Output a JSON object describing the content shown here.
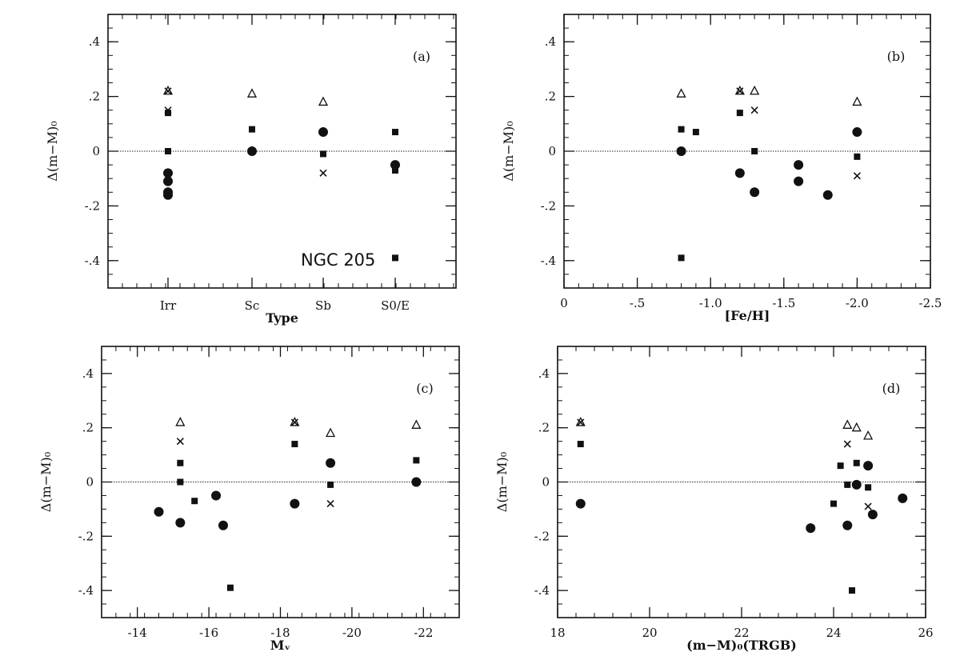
{
  "figure": {
    "annotation": "NGC 205"
  },
  "chart_data": [
    {
      "type": "scatter",
      "panel_label": "(a)",
      "xlabel": "Type",
      "ylabel": "Δ(m−M)₀",
      "x_scale": "categorical",
      "categories": [
        "Irr",
        "Sc",
        "Sb",
        "S0/E"
      ],
      "xlim": [
        0,
        5
      ],
      "ylim": [
        -0.5,
        0.5
      ],
      "y_ticks": [
        -0.4,
        -0.2,
        0,
        0.2,
        0.4
      ],
      "y_tick_labels": [
        "-.4",
        "-.2",
        "0",
        ".2",
        ".4"
      ],
      "reference_line": 0,
      "series": [
        {
          "marker": "triangle",
          "points": [
            [
              1,
              0.22
            ],
            [
              2,
              0.21
            ],
            [
              3,
              0.18
            ]
          ]
        },
        {
          "marker": "cross",
          "points": [
            [
              1,
              0.22
            ],
            [
              1,
              0.15
            ],
            [
              3,
              -0.08
            ]
          ]
        },
        {
          "marker": "square",
          "points": [
            [
              1,
              0.14
            ],
            [
              1,
              0.0
            ],
            [
              2,
              0.08
            ],
            [
              3,
              -0.01
            ],
            [
              4,
              0.07
            ],
            [
              4,
              -0.07
            ],
            [
              4,
              -0.39
            ]
          ]
        },
        {
          "marker": "circle",
          "points": [
            [
              1,
              -0.08
            ],
            [
              1,
              -0.11
            ],
            [
              1,
              -0.15
            ],
            [
              1,
              -0.16
            ],
            [
              2,
              0.0
            ],
            [
              3,
              0.07
            ],
            [
              4,
              -0.05
            ]
          ]
        }
      ]
    },
    {
      "type": "scatter",
      "panel_label": "(b)",
      "xlabel": "[Fe/H]",
      "ylabel": "Δ(m−M)₀",
      "xlim": [
        0,
        -2.5
      ],
      "ylim": [
        -0.5,
        0.5
      ],
      "x_ticks": [
        0,
        -0.5,
        -1.0,
        -1.5,
        -2.0,
        -2.5
      ],
      "x_tick_labels": [
        "0",
        "-.5",
        "-1.0",
        "-1.5",
        "-2.0",
        "-2.5"
      ],
      "y_ticks": [
        -0.4,
        -0.2,
        0,
        0.2,
        0.4
      ],
      "y_tick_labels": [
        "-.4",
        "-.2",
        "0",
        ".2",
        ".4"
      ],
      "reference_line": 0,
      "series": [
        {
          "marker": "triangle",
          "points": [
            [
              -0.8,
              0.21
            ],
            [
              -1.2,
              0.22
            ],
            [
              -1.3,
              0.22
            ],
            [
              -2.0,
              0.18
            ]
          ]
        },
        {
          "marker": "cross",
          "points": [
            [
              -1.2,
              0.22
            ],
            [
              -1.3,
              0.15
            ],
            [
              -2.0,
              -0.09
            ]
          ]
        },
        {
          "marker": "square",
          "points": [
            [
              -0.8,
              0.08
            ],
            [
              -0.9,
              0.07
            ],
            [
              -1.2,
              0.14
            ],
            [
              -1.3,
              0.0
            ],
            [
              -2.0,
              -0.02
            ],
            [
              -0.8,
              -0.39
            ]
          ]
        },
        {
          "marker": "circle",
          "points": [
            [
              -0.8,
              0.0
            ],
            [
              -1.2,
              -0.08
            ],
            [
              -1.3,
              -0.15
            ],
            [
              -1.6,
              -0.05
            ],
            [
              -1.6,
              -0.11
            ],
            [
              -1.8,
              -0.16
            ],
            [
              -2.0,
              0.07
            ]
          ]
        }
      ]
    },
    {
      "type": "scatter",
      "panel_label": "(c)",
      "xlabel": "Mᵥ",
      "ylabel": "Δ(m−M)₀",
      "xlim": [
        -13,
        -23
      ],
      "ylim": [
        -0.5,
        0.5
      ],
      "x_ticks": [
        -14,
        -16,
        -18,
        -20,
        -22
      ],
      "x_tick_labels": [
        "-14",
        "-16",
        "-18",
        "-20",
        "-22"
      ],
      "y_ticks": [
        -0.4,
        -0.2,
        0,
        0.2,
        0.4
      ],
      "y_tick_labels": [
        "-.4",
        "-.2",
        "0",
        ".2",
        ".4"
      ],
      "reference_line": 0,
      "series": [
        {
          "marker": "triangle",
          "points": [
            [
              -15.2,
              0.22
            ],
            [
              -18.4,
              0.22
            ],
            [
              -19.4,
              0.18
            ],
            [
              -21.8,
              0.21
            ]
          ]
        },
        {
          "marker": "cross",
          "points": [
            [
              -15.2,
              0.15
            ],
            [
              -18.4,
              0.22
            ],
            [
              -19.4,
              -0.08
            ]
          ]
        },
        {
          "marker": "square",
          "points": [
            [
              -15.2,
              0.07
            ],
            [
              -15.2,
              0.0
            ],
            [
              -15.6,
              -0.07
            ],
            [
              -16.6,
              -0.39
            ],
            [
              -18.4,
              0.14
            ],
            [
              -19.4,
              -0.01
            ],
            [
              -21.8,
              0.08
            ]
          ]
        },
        {
          "marker": "circle",
          "points": [
            [
              -14.6,
              -0.11
            ],
            [
              -15.2,
              -0.15
            ],
            [
              -16.2,
              -0.05
            ],
            [
              -16.4,
              -0.16
            ],
            [
              -18.4,
              -0.08
            ],
            [
              -19.4,
              0.07
            ],
            [
              -21.8,
              0.0
            ]
          ]
        }
      ]
    },
    {
      "type": "scatter",
      "panel_label": "(d)",
      "xlabel": "(m−M)₀(TRGB)",
      "ylabel": "Δ(m−M)₀",
      "xlim": [
        18,
        26
      ],
      "ylim": [
        -0.5,
        0.5
      ],
      "x_ticks": [
        18,
        20,
        22,
        24,
        26
      ],
      "x_tick_labels": [
        "18",
        "20",
        "22",
        "24",
        "26"
      ],
      "y_ticks": [
        -0.4,
        -0.2,
        0,
        0.2,
        0.4
      ],
      "y_tick_labels": [
        "-.4",
        "-.2",
        "0",
        ".2",
        ".4"
      ],
      "reference_line": 0,
      "series": [
        {
          "marker": "triangle",
          "points": [
            [
              18.5,
              0.22
            ],
            [
              24.3,
              0.21
            ],
            [
              24.5,
              0.2
            ],
            [
              24.75,
              0.17
            ]
          ]
        },
        {
          "marker": "cross",
          "points": [
            [
              18.5,
              0.22
            ],
            [
              24.3,
              0.14
            ],
            [
              24.75,
              -0.09
            ]
          ]
        },
        {
          "marker": "square",
          "points": [
            [
              18.5,
              0.14
            ],
            [
              24.15,
              0.06
            ],
            [
              24.3,
              -0.01
            ],
            [
              24.0,
              -0.08
            ],
            [
              24.5,
              0.07
            ],
            [
              24.75,
              -0.02
            ],
            [
              24.4,
              -0.4
            ]
          ]
        },
        {
          "marker": "circle",
          "points": [
            [
              18.5,
              -0.08
            ],
            [
              23.5,
              -0.17
            ],
            [
              24.3,
              -0.16
            ],
            [
              24.5,
              -0.01
            ],
            [
              24.75,
              0.06
            ],
            [
              24.85,
              -0.12
            ],
            [
              25.5,
              -0.06
            ]
          ]
        }
      ]
    }
  ]
}
